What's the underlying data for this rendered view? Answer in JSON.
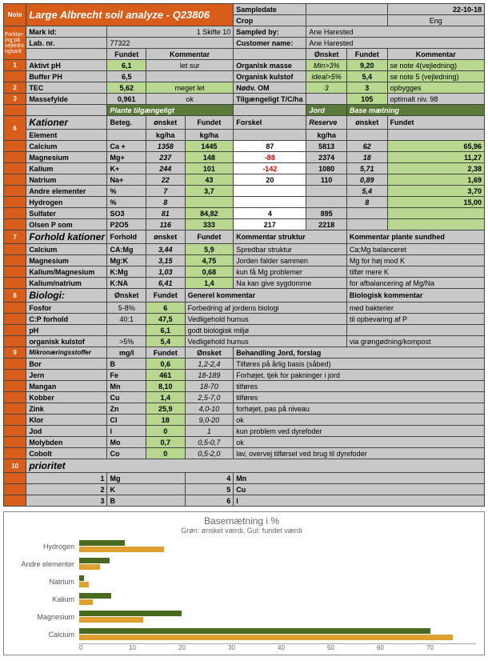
{
  "title": "Large Albrecht soil analyze - Q23806",
  "top": {
    "sampledate_lbl": "Sampledate",
    "sampledate": "22-10-18",
    "crop_lbl": "Crop",
    "crop": "Eng",
    "markid_lbl": "Mark id:",
    "markid": "1 Skifte 10",
    "sampledby_lbl": "Sampled by:",
    "sampledby": "Ane Harested",
    "labnr_lbl": "Lab. nr.",
    "labnr": "77322",
    "custname_lbl": "Customer name:",
    "custname": "Ane Harested"
  },
  "hdr": {
    "fundet": "Fundet",
    "kommentar": "Kommentar",
    "onsket": "Ønsket"
  },
  "r1": {
    "lbl": "Aktivt pH",
    "v": "6,1",
    "k": "let sur",
    "lbl2": "Organisk masse",
    "o": "Min>3%",
    "f": "9,20",
    "k2": "se note 4(vejledning)"
  },
  "r1b": {
    "lbl": "Buffer PH",
    "v": "6,5",
    "lbl2": "Organisk kulstof",
    "o": "ideal>5%",
    "f": "5,4",
    "k2": "se note 5 (vejledning)"
  },
  "r2": {
    "lbl": "TEC",
    "v": "5,62",
    "k": "meget let",
    "lbl2": "Nødv. OM",
    "o": "3",
    "f": "3",
    "k2": "opbygges"
  },
  "r3": {
    "lbl": "Massefylde",
    "v": "0,961",
    "k": "ok",
    "lbl2": "Tilgængeligt T/C/ha",
    "f": "105",
    "k2": "optimalt niv. 98"
  },
  "sec6": {
    "title": "Kationer",
    "plante": "Plante tilgængeligt",
    "jord": "Jord",
    "base": "Base mætning",
    "beteg": "Beteg.",
    "onsket": "ønsket",
    "fundet": "Fundet",
    "forskel": "Forskel",
    "reserve": "Reserve",
    "el": "Element",
    "kg": "kg/ha"
  },
  "kat": [
    {
      "n": "Calcium",
      "b": "Ca +",
      "o": "1358",
      "f": "1445",
      "d": "87",
      "r": "5813",
      "bo": "62",
      "bf": "65,96",
      "neg": false
    },
    {
      "n": "Magnesium",
      "b": "Mg+",
      "o": "237",
      "f": "148",
      "d": "-88",
      "r": "2374",
      "bo": "18",
      "bf": "11,27",
      "neg": true
    },
    {
      "n": "Kalium",
      "b": "K+",
      "o": "244",
      "f": "101",
      "d": "-142",
      "r": "1080",
      "bo": "5,71",
      "bf": "2,38",
      "neg": true
    },
    {
      "n": "Natrium",
      "b": "Na+",
      "o": "22",
      "f": "43",
      "d": "20",
      "r": "110",
      "bo": "0,89",
      "bf": "1,69",
      "neg": false
    },
    {
      "n": "Andre elementer",
      "b": "%",
      "o": "7",
      "f": "3,7",
      "d": "",
      "r": "",
      "bo": "5,4",
      "bf": "3,70",
      "neg": false
    },
    {
      "n": "Hydrogen",
      "b": "%",
      "o": "8",
      "f": "",
      "d": "",
      "r": "",
      "bo": "8",
      "bf": "15,00",
      "neg": false
    },
    {
      "n": "Sulfater",
      "b": "SO3",
      "o": "81",
      "f": "84,82",
      "d": "4",
      "r": "895",
      "bo": "",
      "bf": "",
      "neg": false
    },
    {
      "n": "Olsen P som",
      "b": "P2O5",
      "o": "116",
      "f": "333",
      "d": "217",
      "r": "2218",
      "bo": "",
      "bf": "",
      "neg": false
    }
  ],
  "sec7": {
    "title": "Forhold kationer",
    "forhold": "Forhold",
    "ks": "Kommentar struktur",
    "kp": "Kommentar plante sundhed"
  },
  "fk": [
    {
      "n": "Calcium",
      "b": "CA:Mg",
      "o": "3,44",
      "f": "5,9",
      "ks": "Spredbar struktur",
      "kp": "Ca:Mg balanceret"
    },
    {
      "n": "Magnesium",
      "b": "Mg:K",
      "o": "3,15",
      "f": "4,75",
      "ks": "Jorden falder sammen",
      "kp": "Mg for høj mod K"
    },
    {
      "n": "Kalium/Magnesium",
      "b": "K:Mg",
      "o": "1,03",
      "f": "0,68",
      "ks": "kun få Mg problemer",
      "kp": "tilfør mere K"
    },
    {
      "n": "Kalium/natrium",
      "b": "K:NA",
      "o": "6,41",
      "f": "1,4",
      "ks": "Na kan give sygdomme",
      "kp": "for afbalancering af Mg/Na"
    }
  ],
  "sec8": {
    "title": "Biologi:",
    "gk": "Generel kommentar",
    "bk": "Biologisk kommentar"
  },
  "bio": [
    {
      "n": "Fosfor",
      "o": "5-8%",
      "f": "6",
      "g": "Forbedring af jordens biologi",
      "b": "med bakterier"
    },
    {
      "n": "C:P forhold",
      "o": "40:1",
      "f": "47,5",
      "g": "Vedligehold humus",
      "b": "til opbevaring af P"
    },
    {
      "n": "pH",
      "o": "",
      "f": "6,1",
      "g": "godt biologisk miljø",
      "b": ""
    },
    {
      "n": "organisk kulstof",
      "o": ">5%",
      "f": "5,4",
      "g": "Vedligehold humus",
      "b": "via grøngødning/kompost"
    }
  ],
  "sec9": {
    "title": "Mikronæringsstoffer",
    "mgl": "mg/l",
    "beh": "Behandling Jord, forslag"
  },
  "mik": [
    {
      "n": "Bor",
      "b": "B",
      "f": "0,6",
      "o": "1,2-2,4",
      "k": "Tilføres på årlig basis (såbed)"
    },
    {
      "n": "Jern",
      "b": "Fe",
      "f": "461",
      "o": "18-189",
      "k": "Forhøjet, tjek for pakninger i jord"
    },
    {
      "n": "Mangan",
      "b": "Mn",
      "f": "8,10",
      "o": "18-70",
      "k": "tilføres"
    },
    {
      "n": "Kobber",
      "b": "Cu",
      "f": "1,4",
      "o": "2,5-7,0",
      "k": "tilføres"
    },
    {
      "n": "Zink",
      "b": "Zn",
      "f": "25,9",
      "o": "4,0-10",
      "k": "forhøjet, pas på niveau"
    },
    {
      "n": "Klor",
      "b": "Cl",
      "f": "18",
      "o": "9,0-20",
      "k": "ok"
    },
    {
      "n": "Jod",
      "b": "I",
      "f": "0",
      "o": "1",
      "k": "kun problem ved dyrefoder"
    },
    {
      "n": "Molybden",
      "b": "Mo",
      "f": "0,7",
      "o": "0,5-0,7",
      "k": "ok"
    },
    {
      "n": "Cobolt",
      "b": "Co",
      "f": "0",
      "o": "0,5-2,0",
      "k": "lav, overvej tilførsel ved brug til dyrefoder"
    }
  ],
  "sec10": {
    "title": "prioritet"
  },
  "pri": [
    {
      "i": "1",
      "a": "Mg",
      "j": "4",
      "b": "Mn"
    },
    {
      "i": "2",
      "a": "K",
      "j": "5",
      "b": "Cu"
    },
    {
      "i": "3",
      "a": "B",
      "j": "6",
      "b": "I"
    }
  ],
  "chart": {
    "title": "Basemætning i %",
    "sub": "Grøn: ønsket værdi, Gul: fundet værdi",
    "max": 70,
    "rows": [
      {
        "lbl": "Hydrogen",
        "o": 8,
        "f": 15.0
      },
      {
        "lbl": "Andre elementer",
        "o": 5.4,
        "f": 3.7
      },
      {
        "lbl": "Natrium",
        "o": 0.89,
        "f": 1.69
      },
      {
        "lbl": "Kalium",
        "o": 5.71,
        "f": 2.38
      },
      {
        "lbl": "Magnesium",
        "o": 18,
        "f": 11.27
      },
      {
        "lbl": "Calcium",
        "o": 62,
        "f": 65.96
      }
    ],
    "ticks": [
      "0",
      "10",
      "20",
      "30",
      "40",
      "50",
      "60",
      "70"
    ]
  },
  "colors": {
    "orange": "#d85c1a",
    "green": "#b8d78f",
    "grey": "#c8c8c8",
    "bar_o": "#4a6b1f",
    "bar_f": "#e0a030"
  }
}
